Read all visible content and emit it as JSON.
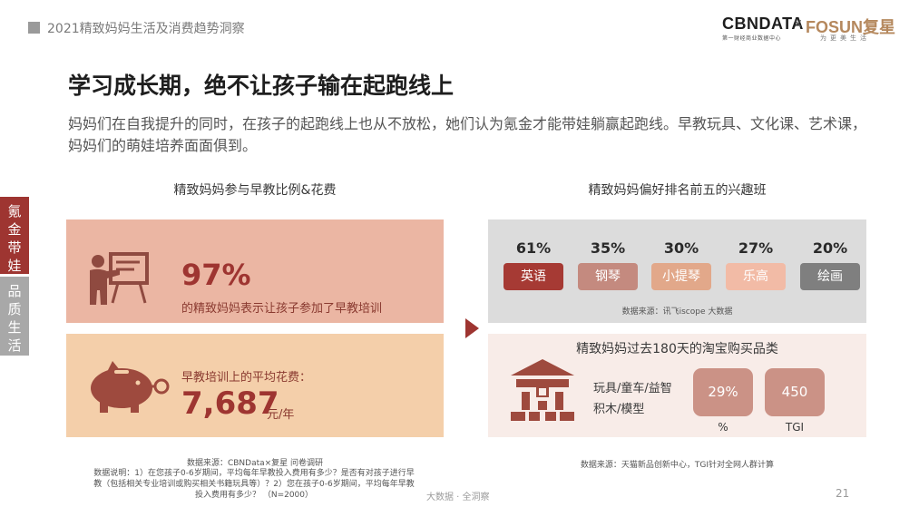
{
  "header": {
    "report_title": "2021精致妈妈生活及消费趋势洞察",
    "logo": {
      "cbn_text": "CBNDATA",
      "cbn_sub": "第一财经商业数据中心",
      "separator": "×",
      "fosun_text": "FOSUN复星",
      "fosun_sub": "为更美生活"
    }
  },
  "page": {
    "title": "学习成长期，绝不让孩子输在起跑线上",
    "intro": "妈妈们在自我提升的同时，在孩子的起跑线上也从不放松，她们认为氪金才能带娃躺赢起跑线。早教玩具、文化课、艺术课，妈妈们的萌娃培养面面俱到。"
  },
  "side_tabs": [
    {
      "label": "氪金带娃",
      "active": true
    },
    {
      "label": "品质生活",
      "active": false
    }
  ],
  "left_section": {
    "title": "精致妈妈参与早教比例&花费",
    "card1": {
      "icon": "teacher-board-icon",
      "big_value": "97%",
      "text": "的精致妈妈表示让孩子参加了早教培训"
    },
    "card2": {
      "icon": "piggy-bank-icon",
      "label": "早教培训上的平均花费：",
      "big_value": "7,687",
      "unit": "元/年"
    },
    "source": "数据来源：CBNData×复星 问卷调研",
    "note": "数据说明：1）在您孩子0-6岁期间，平均每年早教投入费用有多少？是否有对孩子进行早教（包括相关专业培训或购买相关书籍玩具等）？2）您在孩子0-6岁期间，平均每年早教投入费用有多少？ （N=2000）"
  },
  "right_section": {
    "title": "精致妈妈偏好排名前五的兴趣班",
    "classes": [
      {
        "pct": "61%",
        "label": "英语",
        "color": "#a63a34"
      },
      {
        "pct": "35%",
        "label": "钢琴",
        "color": "#c48a7f"
      },
      {
        "pct": "30%",
        "label": "小提琴",
        "color": "#e2a88a"
      },
      {
        "pct": "27%",
        "label": "乐高",
        "color": "#f2bba6"
      },
      {
        "pct": "20%",
        "label": "绘画",
        "color": "#7f7f7f"
      }
    ],
    "source1": "数据来源：讯飞iscope 大数据",
    "taobao": {
      "title": "精致妈妈过去180天的淘宝购买品类",
      "icon": "building-icon",
      "category_line1": "玩具/童车/益智",
      "category_line2": "积木/模型",
      "pct_value": "29%",
      "pct_label": "%",
      "tgi_value": "450",
      "tgi_label": "TGI"
    },
    "source2": "数据来源：天猫新品创新中心，TGI针对全网人群计算"
  },
  "footer": {
    "text": "大数据 · 全洞察",
    "page_number": "21"
  }
}
